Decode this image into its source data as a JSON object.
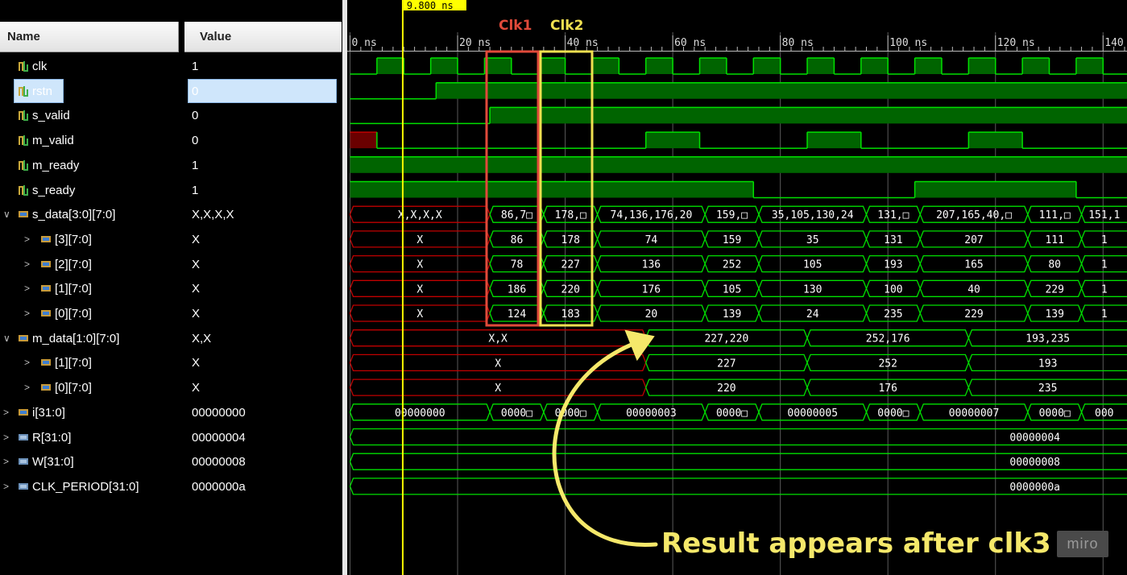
{
  "columns": {
    "name": "Name",
    "value": "Value"
  },
  "timeline": {
    "cursor_time": "9.800 ns",
    "ticks": [
      "0 ns",
      "20 ns",
      "40 ns",
      "60 ns",
      "80 ns",
      "100 ns",
      "120 ns",
      "140"
    ]
  },
  "signals": [
    {
      "name": "clk",
      "value": "1",
      "indent": 0,
      "expand": "none",
      "kind": "bit"
    },
    {
      "name": "rstn",
      "value": "0",
      "indent": 0,
      "expand": "none",
      "kind": "bit",
      "selected": true
    },
    {
      "name": "s_valid",
      "value": "0",
      "indent": 0,
      "expand": "none",
      "kind": "bit"
    },
    {
      "name": "m_valid",
      "value": "0",
      "indent": 0,
      "expand": "none",
      "kind": "bit"
    },
    {
      "name": "m_ready",
      "value": "1",
      "indent": 0,
      "expand": "none",
      "kind": "bit"
    },
    {
      "name": "s_ready",
      "value": "1",
      "indent": 0,
      "expand": "none",
      "kind": "bit"
    },
    {
      "name": "s_data[3:0][7:0]",
      "value": "X,X,X,X",
      "indent": 0,
      "expand": "open",
      "kind": "bus"
    },
    {
      "name": "[3][7:0]",
      "value": "X",
      "indent": 1,
      "expand": "closed",
      "kind": "bus"
    },
    {
      "name": "[2][7:0]",
      "value": "X",
      "indent": 1,
      "expand": "closed",
      "kind": "bus"
    },
    {
      "name": "[1][7:0]",
      "value": "X",
      "indent": 1,
      "expand": "closed",
      "kind": "bus"
    },
    {
      "name": "[0][7:0]",
      "value": "X",
      "indent": 1,
      "expand": "closed",
      "kind": "bus"
    },
    {
      "name": "m_data[1:0][7:0]",
      "value": "X,X",
      "indent": 0,
      "expand": "open",
      "kind": "bus"
    },
    {
      "name": "[1][7:0]",
      "value": "X",
      "indent": 1,
      "expand": "closed",
      "kind": "bus"
    },
    {
      "name": "[0][7:0]",
      "value": "X",
      "indent": 1,
      "expand": "closed",
      "kind": "bus"
    },
    {
      "name": "i[31:0]",
      "value": "00000000",
      "indent": 0,
      "expand": "closed",
      "kind": "bus"
    },
    {
      "name": "R[31:0]",
      "value": "00000004",
      "indent": 0,
      "expand": "closed",
      "kind": "param"
    },
    {
      "name": "W[31:0]",
      "value": "00000008",
      "indent": 0,
      "expand": "closed",
      "kind": "param"
    },
    {
      "name": "CLK_PERIOD[31:0]",
      "value": "0000000a",
      "indent": 0,
      "expand": "closed",
      "kind": "param"
    }
  ],
  "buses": {
    "s_data": [
      "X,X,X,X",
      "86,7□",
      "178,□",
      "74,136,176,20",
      "159,□",
      "35,105,130,24",
      "131,□",
      "207,165,40,□",
      "111,□",
      "151,1"
    ],
    "s3": [
      "X",
      "86",
      "178",
      "74",
      "159",
      "35",
      "131",
      "207",
      "111",
      "1"
    ],
    "s2": [
      "X",
      "78",
      "227",
      "136",
      "252",
      "105",
      "193",
      "165",
      "80",
      "1"
    ],
    "s1": [
      "X",
      "186",
      "220",
      "176",
      "105",
      "130",
      "100",
      "40",
      "229",
      "1"
    ],
    "s0": [
      "X",
      "124",
      "183",
      "20",
      "139",
      "24",
      "235",
      "229",
      "139",
      "1"
    ],
    "m_data": [
      "X,X",
      "227,220",
      "252,176",
      "193,235"
    ],
    "m1": [
      "X",
      "227",
      "252",
      "193"
    ],
    "m0": [
      "X",
      "220",
      "176",
      "235"
    ],
    "i": [
      "00000000",
      "0000□",
      "0000□",
      "00000003",
      "0000□",
      "00000005",
      "0000□",
      "00000007",
      "0000□",
      "000"
    ],
    "R": "00000004",
    "W": "00000008",
    "CLK_PERIOD": "0000000a"
  },
  "annotations": {
    "clk1": "Clk1",
    "clk2": "Clk2",
    "result": "Result appears after clk3"
  },
  "watermark": "miro",
  "colors": {
    "wave": "#00e000",
    "fill": "#006400",
    "undefined": "#c00000",
    "undefined_fill": "#6a0000",
    "cursor": "#ffff00",
    "clk1_box": "#e04a3a",
    "clk2_box": "#f0e050"
  }
}
